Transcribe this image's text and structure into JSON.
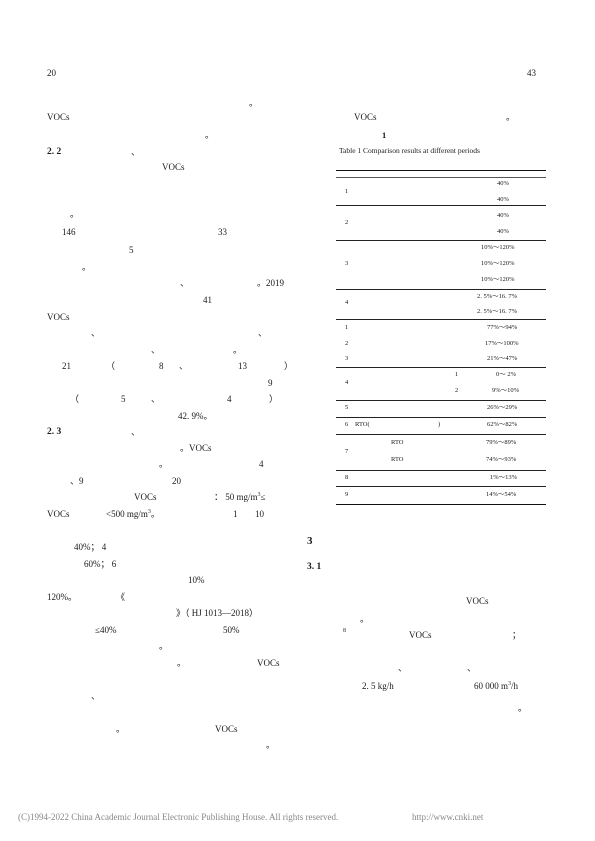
{
  "header": {
    "left_page": "20",
    "right_page": "43"
  },
  "left_column": {
    "lines": [
      "。",
      "VOCs",
      "。",
      "VOCs",
      "。",
      "146",
      "33",
      "5",
      "。",
      "、",
      "。2019",
      "41",
      "VOCs",
      "、",
      "、",
      "、",
      "。",
      "21",
      "（",
      "8",
      "、",
      "13",
      "）",
      "9",
      "（",
      "5",
      "、",
      "4",
      "）",
      "42. 9%。",
      "。VOCs",
      "。",
      "4",
      "、9",
      "20",
      "VOCs",
      "：  50  mg/m",
      "3",
      "≤",
      "VOCs",
      "<500  mg/m",
      "3",
      "。",
      "1",
      "10",
      "40%；  4",
      "60%；  6",
      "10%",
      "120%。",
      "《",
      "》（ HJ  1013—2018）",
      "≤40%",
      "50%",
      "。",
      "。",
      "VOCs",
      "、",
      "。",
      "VOCs",
      "。"
    ],
    "sections": {
      "s22": "2. 2",
      "s22_mark": "、",
      "s23": "2. 3",
      "s23_mark": "、"
    }
  },
  "right_column": {
    "intro": [
      "VOCs",
      "。"
    ],
    "table_number": "1",
    "table_caption": "Table 1    Comparison results at different periods",
    "table_rows": [
      {
        "id": "1",
        "values": [
          "40%",
          "40%"
        ]
      },
      {
        "id": "2",
        "values": [
          "40%",
          "40%"
        ]
      },
      {
        "id": "3",
        "values": [
          "10%～120%",
          "10%～120%",
          "10%～120%"
        ]
      },
      {
        "id": "4",
        "values": [
          "2. 5%～16. 7%",
          "2. 5%～16. 7%"
        ]
      },
      {
        "id": "1",
        "values": [
          "77%～94%"
        ]
      },
      {
        "id": "2",
        "values": [
          "17%～100%"
        ]
      },
      {
        "id": "3",
        "values": [
          "21%～47%"
        ]
      },
      {
        "id": "4",
        "subs": [
          "1",
          "2"
        ],
        "values": [
          "0～ 2%",
          "9%～10%"
        ]
      },
      {
        "id": "5",
        "values": [
          "26%～29%"
        ]
      },
      {
        "id": "6",
        "prefix": "RTO(",
        "suffix": ")",
        "values": [
          "62%～82%"
        ]
      },
      {
        "id": "7",
        "subs": [
          "RTO",
          "RTO"
        ],
        "values": [
          "79%～89%",
          "74%～93%"
        ]
      },
      {
        "id": "8",
        "values": [
          "1%～13%"
        ]
      },
      {
        "id": "9",
        "values": [
          "14%～54%"
        ]
      }
    ],
    "section3": "3",
    "section31": "3. 1",
    "text_vocs1": "VOCs",
    "mark1": "。",
    "sup8": "8",
    "text_vocs2": "VOCs",
    "semicolon": "；",
    "dun1": "、",
    "dun2": "、",
    "rate": "2. 5  kg/h",
    "flow": "60 000  m",
    "flow_sup": "3",
    "flow_unit": "/h",
    "mark2": "。"
  },
  "footer": {
    "copyright": "(C)1994-2022 China Academic Journal Electronic Publishing House. All rights reserved.",
    "url": "http://www.cnki.net"
  }
}
